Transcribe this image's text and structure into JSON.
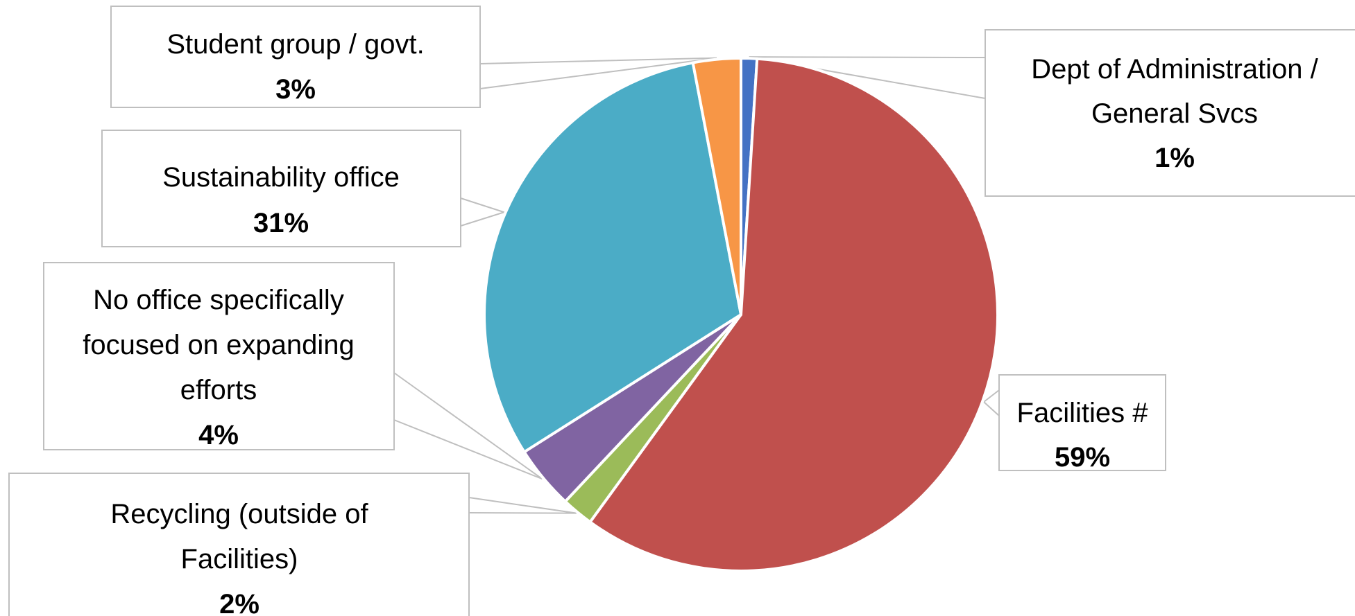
{
  "chart_data": {
    "type": "pie",
    "title": "",
    "start_angle_deg": 0,
    "direction": "clockwise",
    "slices": [
      {
        "label": "Dept of Administration / General Svcs",
        "label_lines": [
          "Dept of Administration /",
          "General Svcs"
        ],
        "value": 1,
        "value_label": "1%",
        "color": "#4472C4"
      },
      {
        "label": "Facilities #",
        "label_lines": [
          "Facilities #"
        ],
        "value": 59,
        "value_label": "59%",
        "color": "#C0504D"
      },
      {
        "label": "Recycling (outside of Facilities)",
        "label_lines": [
          "Recycling (outside of",
          "Facilities)"
        ],
        "value": 2,
        "value_label": "2%",
        "color": "#9BBB59"
      },
      {
        "label": "No office specifically focused on expanding efforts",
        "label_lines": [
          "No office specifically",
          "focused on expanding",
          "efforts"
        ],
        "value": 4,
        "value_label": "4%",
        "color": "#8064A2"
      },
      {
        "label": "Sustainability office",
        "label_lines": [
          "Sustainability office"
        ],
        "value": 31,
        "value_label": "31%",
        "color": "#4BACC6"
      },
      {
        "label": "Student group / govt.",
        "label_lines": [
          "Student group / govt."
        ],
        "value": 3,
        "value_label": "3%",
        "color": "#F79646"
      }
    ]
  }
}
